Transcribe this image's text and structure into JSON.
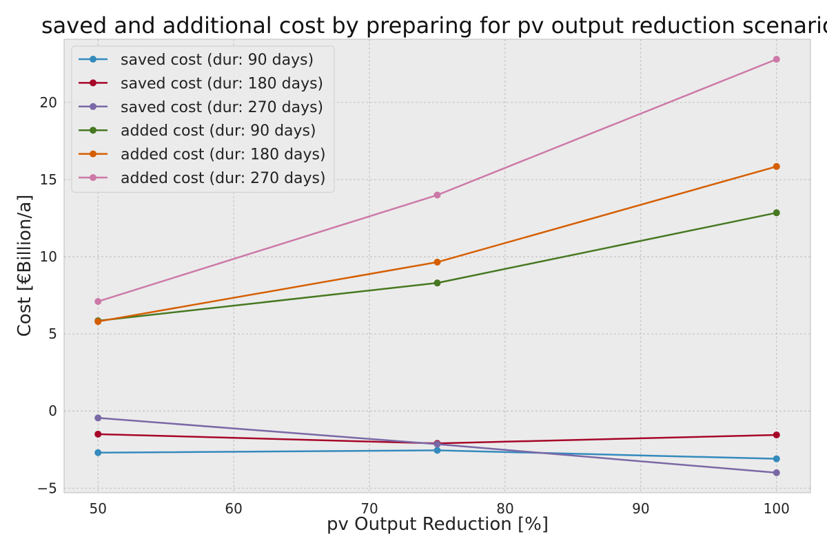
{
  "chart_data": {
    "type": "line",
    "title": "saved and additional cost by preparing for pv output reduction scenario",
    "xlabel": "pv Output Reduction [%]",
    "ylabel": "Cost [€Billion/a]",
    "x": [
      50,
      75,
      100
    ],
    "xlim": [
      47.5,
      102.5
    ],
    "ylim": [
      -5.3,
      24.1
    ],
    "xticks": [
      50,
      60,
      70,
      80,
      90,
      100
    ],
    "yticks": [
      -5,
      0,
      5,
      10,
      15,
      20
    ],
    "xtick_labels": [
      "50",
      "60",
      "70",
      "80",
      "90",
      "100"
    ],
    "ytick_labels": [
      "−5",
      "0",
      "5",
      "10",
      "15",
      "20"
    ],
    "grid": true,
    "legend_position": "top-left",
    "background": "#ebebeb",
    "series": [
      {
        "name": "saved cost (dur: 90 days)",
        "color": "#348abd",
        "values": [
          -2.7,
          -2.55,
          -3.1
        ]
      },
      {
        "name": "saved cost (dur: 180 days)",
        "color": "#a60628",
        "values": [
          -1.5,
          -2.1,
          -1.55
        ]
      },
      {
        "name": "saved cost (dur: 270 days)",
        "color": "#7a68a6",
        "values": [
          -0.45,
          -2.15,
          -4.0
        ]
      },
      {
        "name": "added cost (dur: 90 days)",
        "color": "#467821",
        "values": [
          5.85,
          8.3,
          12.85
        ]
      },
      {
        "name": "added cost (dur: 180 days)",
        "color": "#d55e00",
        "values": [
          5.8,
          9.65,
          15.85
        ]
      },
      {
        "name": "added cost (dur: 270 days)",
        "color": "#cc79a7",
        "values": [
          7.1,
          14.0,
          22.8
        ]
      }
    ]
  }
}
